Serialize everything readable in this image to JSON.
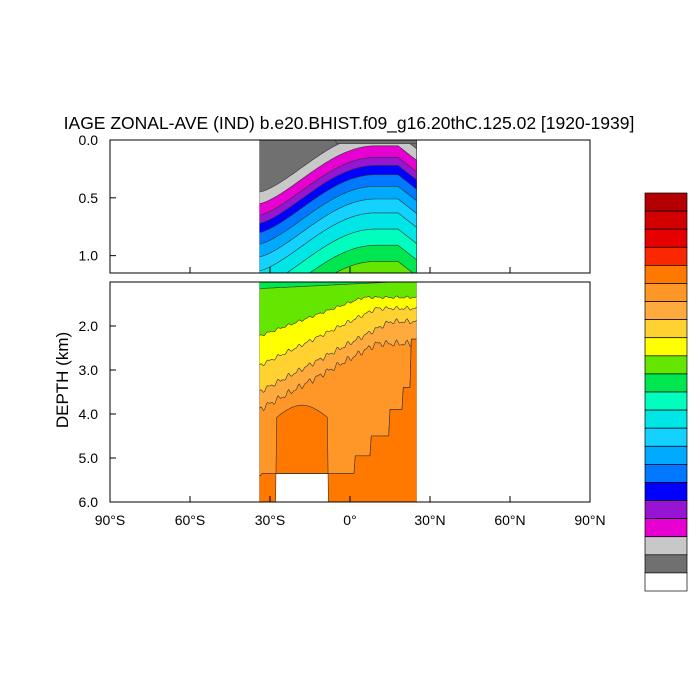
{
  "chart_data": {
    "type": "contour",
    "title": "IAGE ZONAL-AVE (IND) b.e20.BHIST.f09_g16.20thC.125.02 [1920-1939]",
    "ylabel": "DEPTH (km)",
    "xlabel": "",
    "x_range": [
      -90,
      90
    ],
    "x_ticks": [
      {
        "value": -90,
        "label": "90°S"
      },
      {
        "value": -60,
        "label": "60°S"
      },
      {
        "value": -30,
        "label": "30°S"
      },
      {
        "value": 0,
        "label": "0°"
      },
      {
        "value": 30,
        "label": "30°N"
      },
      {
        "value": 60,
        "label": "60°N"
      },
      {
        "value": 90,
        "label": "90°N"
      }
    ],
    "panels": [
      {
        "name": "upper",
        "depth_range_km": [
          0,
          1.15
        ],
        "y_ticks": [
          {
            "value": 0.0,
            "label": "0.0"
          },
          {
            "value": 0.5,
            "label": "0.5"
          },
          {
            "value": 1.0,
            "label": "1.0"
          }
        ]
      },
      {
        "name": "lower",
        "depth_range_km": [
          1.0,
          6.0
        ],
        "y_ticks": [
          {
            "value": 2.0,
            "label": "2.0"
          },
          {
            "value": 3.0,
            "label": "3.0"
          },
          {
            "value": 4.0,
            "label": "4.0"
          },
          {
            "value": 5.0,
            "label": "5.0"
          },
          {
            "value": 6.0,
            "label": "6.0"
          }
        ]
      }
    ],
    "data_lat_range": [
      -34,
      25
    ],
    "colorbar": {
      "placement": "right",
      "colors_top_to_bottom": [
        "#b40000",
        "#d20000",
        "#e60000",
        "#fa2800",
        "#ff7800",
        "#ff9628",
        "#ffaa3c",
        "#ffd232",
        "#ffff00",
        "#64e600",
        "#00e650",
        "#00ffbe",
        "#00e6e6",
        "#14d2ff",
        "#00aaff",
        "#0078ff",
        "#0000ff",
        "#9614d2",
        "#e600d2",
        "#c8c8c8",
        "#707070",
        "#ffffff"
      ]
    }
  }
}
